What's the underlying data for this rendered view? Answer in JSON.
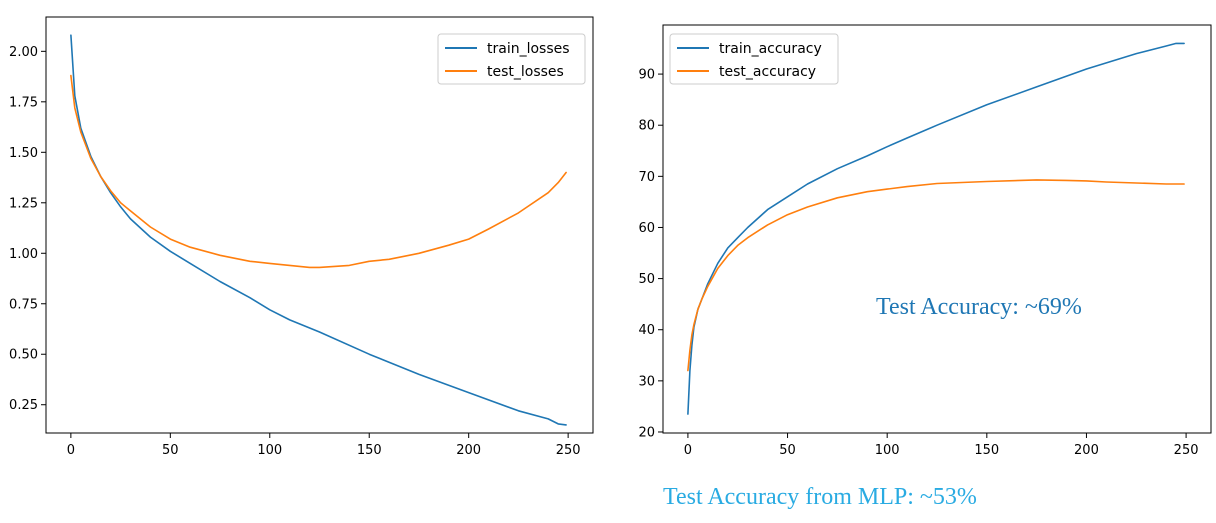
{
  "chart_data": [
    {
      "type": "line",
      "xlim": [
        -12.5,
        262.5
      ],
      "ylim": [
        0.11,
        2.17
      ],
      "xticks": [
        0,
        50,
        100,
        150,
        200,
        250
      ],
      "yticks": [
        0.25,
        0.5,
        0.75,
        1.0,
        1.25,
        1.5,
        1.75,
        2.0
      ],
      "ytick_labels": [
        "0.25",
        "0.50",
        "0.75",
        "1.00",
        "1.25",
        "1.50",
        "1.75",
        "2.00"
      ],
      "legend_position": "top-right",
      "grid": false,
      "series": [
        {
          "name": "train_losses",
          "color": "#1f77b4",
          "x": [
            0,
            2,
            5,
            10,
            15,
            20,
            25,
            30,
            40,
            50,
            60,
            75,
            90,
            100,
            110,
            125,
            150,
            175,
            200,
            225,
            240,
            245,
            249
          ],
          "y": [
            2.08,
            1.78,
            1.62,
            1.48,
            1.38,
            1.3,
            1.23,
            1.17,
            1.08,
            1.01,
            0.95,
            0.86,
            0.78,
            0.72,
            0.67,
            0.61,
            0.5,
            0.4,
            0.31,
            0.22,
            0.18,
            0.155,
            0.15
          ]
        },
        {
          "name": "test_losses",
          "color": "#ff7f0e",
          "x": [
            0,
            2,
            5,
            10,
            15,
            20,
            25,
            30,
            40,
            50,
            60,
            75,
            90,
            100,
            110,
            120,
            125,
            140,
            150,
            160,
            175,
            190,
            200,
            210,
            225,
            240,
            245,
            249
          ],
          "y": [
            1.88,
            1.72,
            1.6,
            1.47,
            1.38,
            1.31,
            1.25,
            1.21,
            1.13,
            1.07,
            1.03,
            0.99,
            0.96,
            0.95,
            0.94,
            0.93,
            0.93,
            0.94,
            0.96,
            0.97,
            1.0,
            1.04,
            1.07,
            1.12,
            1.2,
            1.3,
            1.35,
            1.4
          ]
        }
      ]
    },
    {
      "type": "line",
      "xlim": [
        -12.5,
        262.5
      ],
      "ylim": [
        19.8,
        99.6
      ],
      "xticks": [
        0,
        50,
        100,
        150,
        200,
        250
      ],
      "yticks": [
        20,
        30,
        40,
        50,
        60,
        70,
        80,
        90
      ],
      "ytick_labels": [
        "20",
        "30",
        "40",
        "50",
        "60",
        "70",
        "80",
        "90"
      ],
      "legend_position": "top-left",
      "grid": false,
      "series": [
        {
          "name": "train_accuracy",
          "color": "#1f77b4",
          "x": [
            0,
            1,
            2,
            3,
            5,
            7,
            10,
            15,
            20,
            25,
            30,
            40,
            50,
            60,
            75,
            90,
            100,
            110,
            125,
            150,
            175,
            200,
            225,
            240,
            245,
            249
          ],
          "y": [
            23.5,
            32,
            37,
            40.5,
            44,
            46,
            49,
            53,
            56,
            58,
            60,
            63.5,
            66,
            68.5,
            71.5,
            74,
            75.8,
            77.5,
            80,
            84,
            87.5,
            91,
            94,
            95.5,
            96,
            96
          ]
        },
        {
          "name": "test_accuracy",
          "color": "#ff7f0e",
          "x": [
            0,
            1,
            2,
            3,
            5,
            7,
            10,
            15,
            20,
            25,
            30,
            40,
            50,
            60,
            75,
            90,
            100,
            110,
            125,
            150,
            175,
            190,
            200,
            210,
            225,
            240,
            249
          ],
          "y": [
            32,
            36,
            39,
            41,
            44,
            46,
            48.5,
            52,
            54.5,
            56.5,
            58,
            60.5,
            62.5,
            64,
            65.8,
            67,
            67.5,
            68,
            68.6,
            69,
            69.3,
            69.2,
            69.1,
            68.9,
            68.7,
            68.5,
            68.5
          ]
        }
      ]
    }
  ],
  "annotations": {
    "test_accuracy": "Test Accuracy: ~69%",
    "test_accuracy_color": "#1f77b4",
    "mlp_accuracy": "Test Accuracy from MLP: ~53%",
    "mlp_accuracy_color": "#29abe2"
  }
}
